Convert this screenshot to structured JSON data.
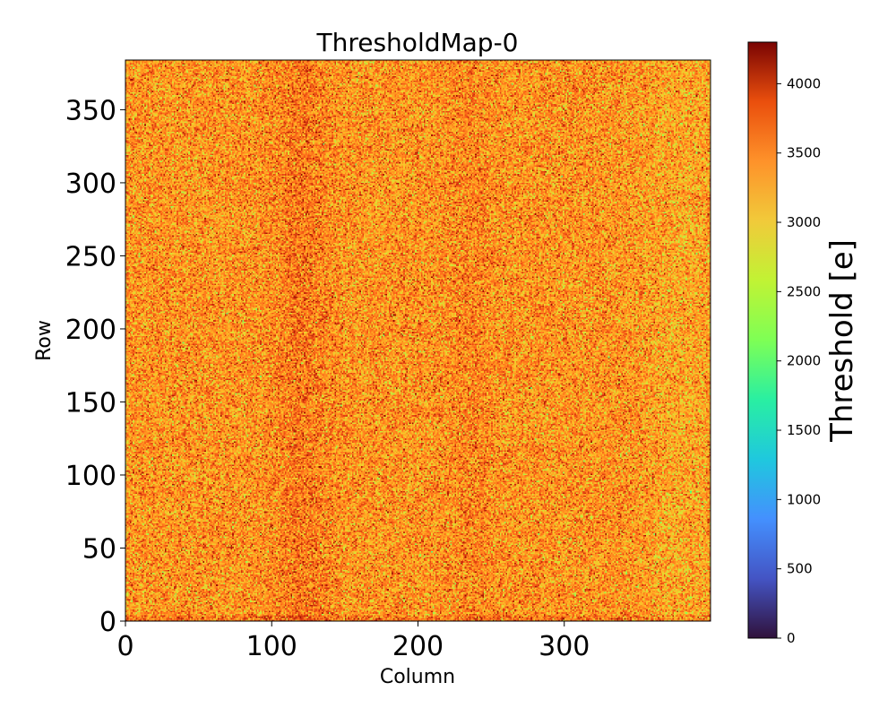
{
  "chart_data": {
    "type": "heatmap",
    "title": "ThresholdMap-0",
    "xlabel": "Column",
    "ylabel": "Row",
    "xlim": [
      0,
      400
    ],
    "ylim": [
      0,
      384
    ],
    "x_ticks": [
      0,
      100,
      200,
      300
    ],
    "y_ticks": [
      0,
      50,
      100,
      150,
      200,
      250,
      300,
      350
    ],
    "colorbar": {
      "label": "Threshold [e]",
      "colormap": "turbo",
      "range": [
        0,
        4300
      ],
      "ticks": [
        0,
        500,
        1000,
        1500,
        2000,
        2500,
        3000,
        3500,
        4000
      ]
    },
    "typical_threshold": 3100,
    "threshold_spread": 330,
    "colors": {
      "low": "#30123b",
      "mid": "#1ae4b6",
      "typical": "#f9a52a",
      "high": "#7a0403"
    }
  }
}
